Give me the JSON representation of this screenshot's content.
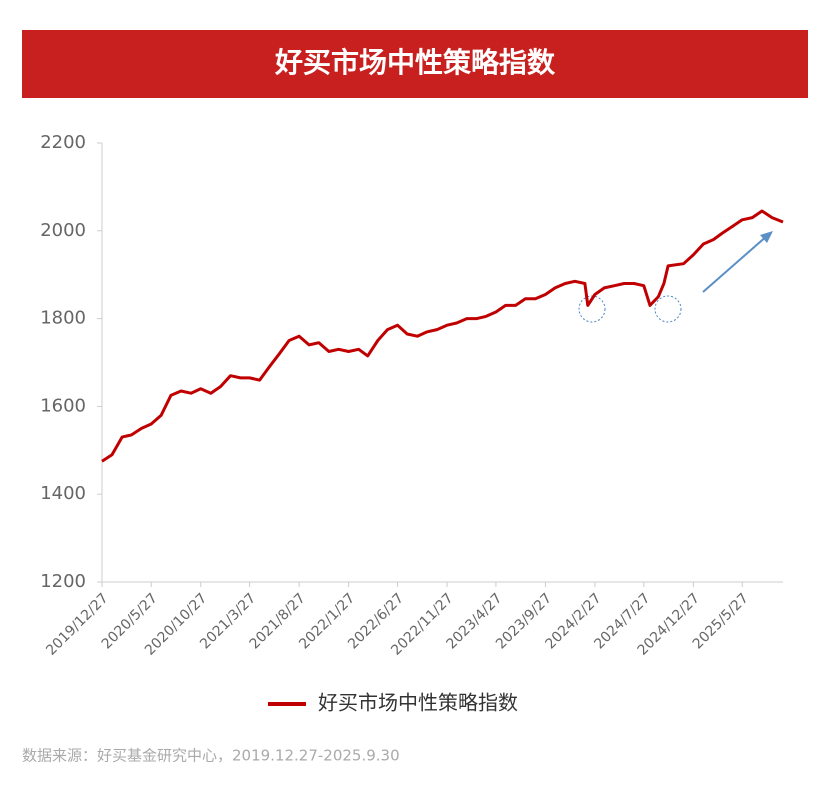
{
  "chart_data": {
    "type": "line",
    "title": "好买市场中性策略指数",
    "x": [
      "2019/12/27",
      "2020/1/27",
      "2020/2/27",
      "2020/3/27",
      "2020/4/27",
      "2020/5/27",
      "2020/6/27",
      "2020/7/27",
      "2020/8/27",
      "2020/9/27",
      "2020/10/27",
      "2020/11/27",
      "2020/12/27",
      "2021/1/27",
      "2021/2/27",
      "2021/3/27",
      "2021/4/27",
      "2021/5/27",
      "2021/6/27",
      "2021/7/27",
      "2021/8/27",
      "2021/9/27",
      "2021/10/27",
      "2021/11/27",
      "2021/12/27",
      "2022/1/27",
      "2022/2/27",
      "2022/3/27",
      "2022/4/27",
      "2022/5/27",
      "2022/6/27",
      "2022/7/27",
      "2022/8/27",
      "2022/9/27",
      "2022/10/27",
      "2022/11/27",
      "2022/12/27",
      "2023/1/27",
      "2023/2/27",
      "2023/3/27",
      "2023/4/27",
      "2023/5/27",
      "2023/6/27",
      "2023/7/27",
      "2023/8/27",
      "2023/9/27",
      "2023/10/27",
      "2023/11/27",
      "2023/12/27",
      "2024/1/27",
      "2024/2/5",
      "2024/2/27",
      "2024/3/27",
      "2024/4/27",
      "2024/5/27",
      "2024/6/27",
      "2024/7/27",
      "2024/8/15",
      "2024/9/10",
      "2024/9/27",
      "2024/10/10",
      "2024/11/27",
      "2024/12/27",
      "2025/1/27",
      "2025/2/27",
      "2025/3/27",
      "2025/4/27",
      "2025/5/27",
      "2025/6/27",
      "2025/7/27",
      "2025/8/27",
      "2025/9/30"
    ],
    "series": [
      {
        "name": "好买市场中性策略指数",
        "color": "#c00000",
        "values": [
          1475,
          1490,
          1530,
          1535,
          1550,
          1560,
          1580,
          1625,
          1635,
          1630,
          1640,
          1630,
          1645,
          1670,
          1665,
          1665,
          1660,
          1690,
          1720,
          1750,
          1760,
          1740,
          1745,
          1725,
          1730,
          1725,
          1730,
          1715,
          1750,
          1775,
          1785,
          1765,
          1760,
          1770,
          1775,
          1785,
          1790,
          1800,
          1800,
          1805,
          1815,
          1830,
          1830,
          1845,
          1845,
          1855,
          1870,
          1880,
          1885,
          1880,
          1830,
          1855,
          1870,
          1875,
          1880,
          1880,
          1875,
          1830,
          1850,
          1880,
          1920,
          1925,
          1945,
          1970,
          1980,
          1995,
          2010,
          2025,
          2030,
          2045,
          2030,
          2020
        ]
      }
    ],
    "xlim": [
      "2019/12/27",
      "2025/9/30"
    ],
    "xticks": [
      "2019/12/27",
      "2020/5/27",
      "2020/10/27",
      "2021/3/27",
      "2021/8/27",
      "2022/1/27",
      "2022/6/27",
      "2022/11/27",
      "2023/4/27",
      "2023/9/27",
      "2024/2/27",
      "2024/7/27",
      "2024/12/27",
      "2025/5/27"
    ],
    "ylim": [
      1200,
      2200
    ],
    "yticks": [
      1200,
      1400,
      1600,
      1800,
      2000,
      2200
    ],
    "source": "数据来源：好买基金研究中心，2019.12.27-2025.9.30"
  }
}
